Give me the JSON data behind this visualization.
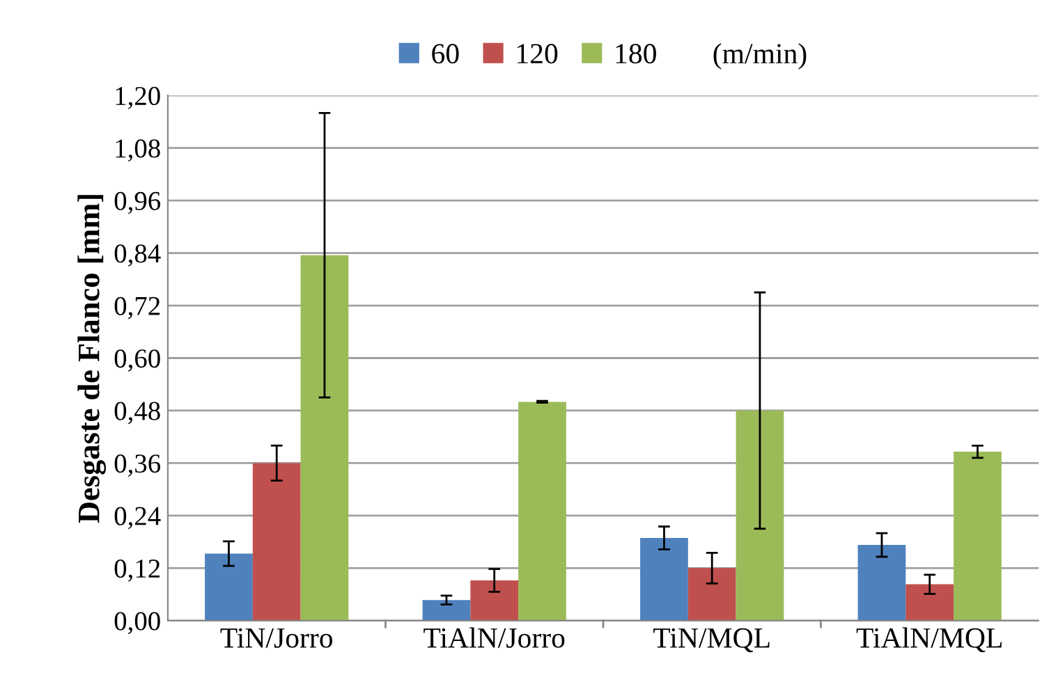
{
  "chart_data": {
    "type": "bar",
    "ylabel": "Desgaste de Flanco [mm]",
    "legend_title": "(m/min)",
    "categories": [
      "TiN/Jorro",
      "TiAlN/Jorro",
      "TiN/MQL",
      "TiAlN/MQL"
    ],
    "series": [
      {
        "name": "60",
        "color": "#4f81bd",
        "values": [
          0.153,
          0.047,
          0.189,
          0.173
        ],
        "errors": [
          0.028,
          0.01,
          0.026,
          0.027
        ]
      },
      {
        "name": "120",
        "color": "#c0504d",
        "values": [
          0.36,
          0.092,
          0.12,
          0.083
        ],
        "errors": [
          0.04,
          0.026,
          0.035,
          0.022
        ]
      },
      {
        "name": "180",
        "color": "#9bbb59",
        "values": [
          0.835,
          0.5,
          0.48,
          0.386
        ],
        "errors": [
          0.325,
          0.002,
          0.27,
          0.014
        ]
      }
    ],
    "ylim": [
      0,
      1.2
    ],
    "yticks": [
      {
        "value": 0,
        "label": "0,00"
      },
      {
        "value": 0.12,
        "label": "0,12"
      },
      {
        "value": 0.24,
        "label": "0,24"
      },
      {
        "value": 0.36,
        "label": "0,36"
      },
      {
        "value": 0.48,
        "label": "0,48"
      },
      {
        "value": 0.6,
        "label": "0,60"
      },
      {
        "value": 0.72,
        "label": "0,72"
      },
      {
        "value": 0.84,
        "label": "0,84"
      },
      {
        "value": 0.96,
        "label": "0,96"
      },
      {
        "value": 1.08,
        "label": "1,08"
      },
      {
        "value": 1.2,
        "label": "1,20"
      }
    ],
    "grid": "y",
    "legend": "top"
  }
}
